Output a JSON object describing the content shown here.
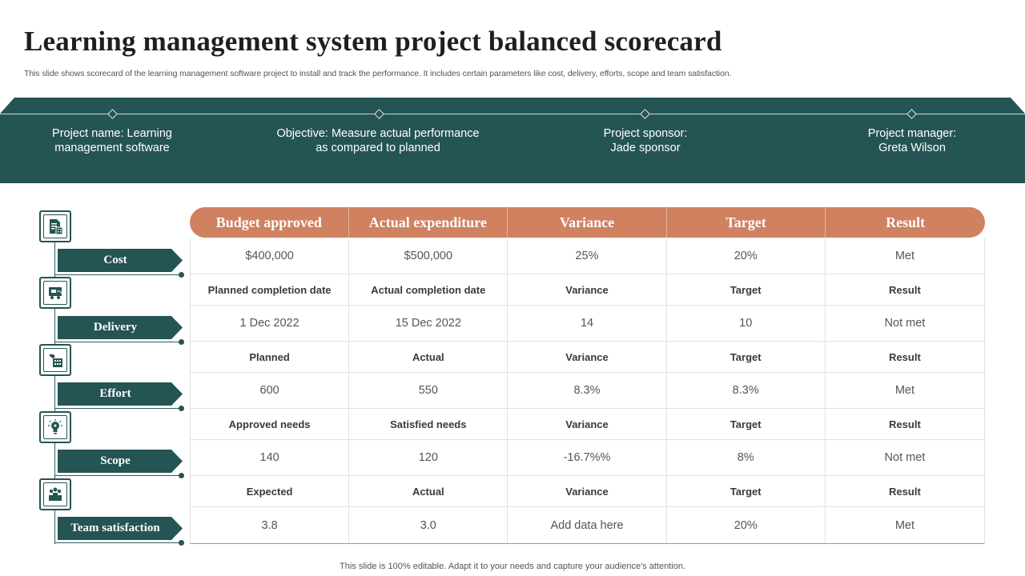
{
  "title": "Learning management system project balanced scorecard",
  "subtitle": "This slide shows scorecard of the learning management software project to install and track the performance. It includes certain parameters like cost, delivery, efforts, scope and team satisfaction.",
  "banner": {
    "items": [
      {
        "line1": "Project name: Learning",
        "line2": "management software"
      },
      {
        "line1": "Objective:  Measure actual performance",
        "line2": "as compared to planned"
      },
      {
        "line1": "Project sponsor:",
        "line2": "Jade sponsor"
      },
      {
        "line1": "Project manager:",
        "line2": "Greta Wilson"
      }
    ]
  },
  "categories": [
    {
      "label": "Cost",
      "icon": "document-calculator-icon"
    },
    {
      "label": "Delivery",
      "icon": "delivery-truck-icon"
    },
    {
      "label": "Effort",
      "icon": "effort-hand-icon"
    },
    {
      "label": "Scope",
      "icon": "scope-bulb-icon"
    },
    {
      "label": "Team satisfaction",
      "icon": "team-icon"
    }
  ],
  "table": {
    "headers": [
      "Budget approved",
      "Actual expenditure",
      "Variance",
      "Target",
      "Result"
    ],
    "rows": [
      {
        "type": "value",
        "cells": [
          "$400,000",
          "$500,000",
          "25%",
          "20%",
          "Met"
        ]
      },
      {
        "type": "label",
        "cells": [
          "Planned completion date",
          "Actual completion date",
          "Variance",
          "Target",
          "Result"
        ]
      },
      {
        "type": "value",
        "cells": [
          "1 Dec 2022",
          "15 Dec 2022",
          "14",
          "10",
          "Not met"
        ]
      },
      {
        "type": "label",
        "cells": [
          "Planned",
          "Actual",
          "Variance",
          "Target",
          "Result"
        ]
      },
      {
        "type": "value",
        "cells": [
          "600",
          "550",
          "8.3%",
          "8.3%",
          "Met"
        ]
      },
      {
        "type": "label",
        "cells": [
          "Approved needs",
          "Satisfied needs",
          "Variance",
          "Target",
          "Result"
        ]
      },
      {
        "type": "value",
        "cells": [
          "140",
          "120",
          "-16.7%%",
          "8%",
          "Not met"
        ]
      },
      {
        "type": "label",
        "cells": [
          "Expected",
          "Actual",
          "Variance",
          "Target",
          "Result"
        ]
      },
      {
        "type": "value",
        "cells": [
          "3.8",
          "3.0",
          "Add data here",
          "20%",
          "Met"
        ]
      }
    ]
  },
  "footer": "This slide is 100% editable. Adapt it to your needs and capture your audience's attention.",
  "colors": {
    "teal": "#255454",
    "orange": "#cf8160"
  }
}
